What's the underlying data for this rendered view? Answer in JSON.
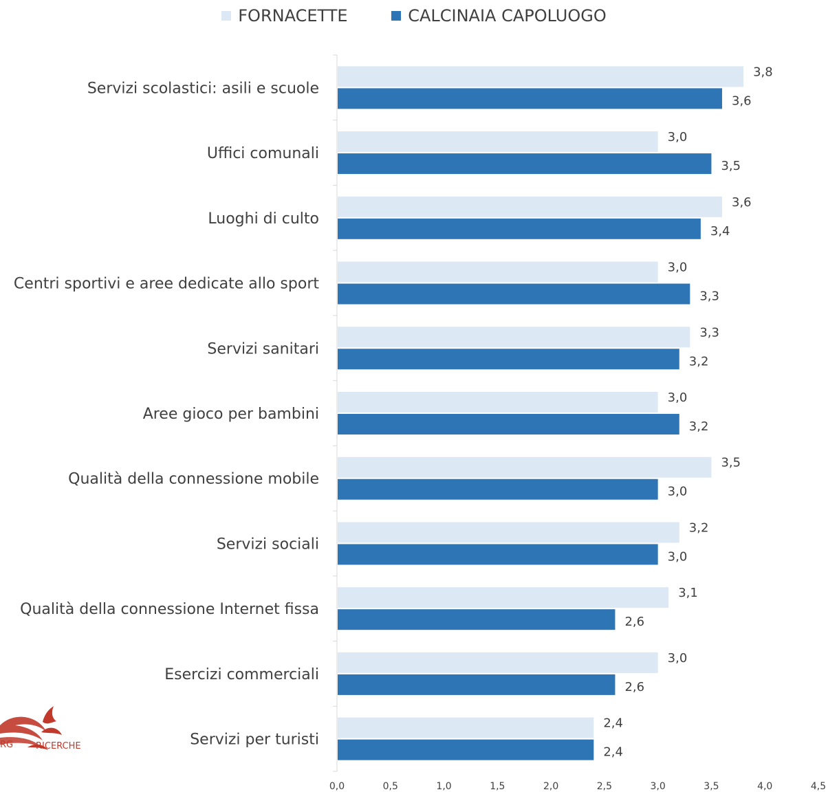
{
  "chart_data": {
    "type": "bar",
    "orientation": "horizontal",
    "categories": [
      "Servizi scolastici: asili e scuole",
      "Uffici comunali",
      "Luoghi di culto",
      "Centri sportivi e aree dedicate allo sport",
      "Servizi sanitari",
      "Aree gioco per bambini",
      "Qualità della connessione mobile",
      "Servizi sociali",
      "Qualità della connessione Internet fissa",
      "Esercizi commerciali",
      "Servizi per turisti"
    ],
    "series": [
      {
        "name": "FORNACETTE",
        "color": "#dde8f5",
        "values": [
          3.8,
          3.0,
          3.6,
          3.0,
          3.3,
          3.0,
          3.5,
          3.2,
          3.1,
          3.0,
          2.4
        ],
        "labels": [
          "3,8",
          "3,0",
          "3,6",
          "3,0",
          "3,3",
          "3,0",
          "3,5",
          "3,2",
          "3,1",
          "3,0",
          "2,4"
        ]
      },
      {
        "name": "CALCINAIA CAPOLUOGO",
        "color": "#2e75b6",
        "values": [
          3.6,
          3.5,
          3.4,
          3.3,
          3.2,
          3.2,
          3.0,
          3.0,
          2.6,
          2.6,
          2.4
        ],
        "labels": [
          "3,6",
          "3,5",
          "3,4",
          "3,3",
          "3,2",
          "3,2",
          "3,0",
          "3,0",
          "2,6",
          "2,6",
          "2,4"
        ]
      }
    ],
    "xlim": [
      0,
      4.5
    ],
    "xticks": [
      0,
      0.5,
      1.0,
      1.5,
      2.0,
      2.5,
      3.0,
      3.5,
      4.0,
      4.5
    ],
    "xtick_labels": [
      "0,0",
      "0,5",
      "1,0",
      "1,5",
      "2,0",
      "2,5",
      "3,0",
      "3,5",
      "4,0",
      "4,5"
    ],
    "legend_position": "top-center",
    "grid": false
  },
  "logo": {
    "text": "RICERCHE",
    "partial_text": "RG",
    "color": "#c0392b"
  }
}
